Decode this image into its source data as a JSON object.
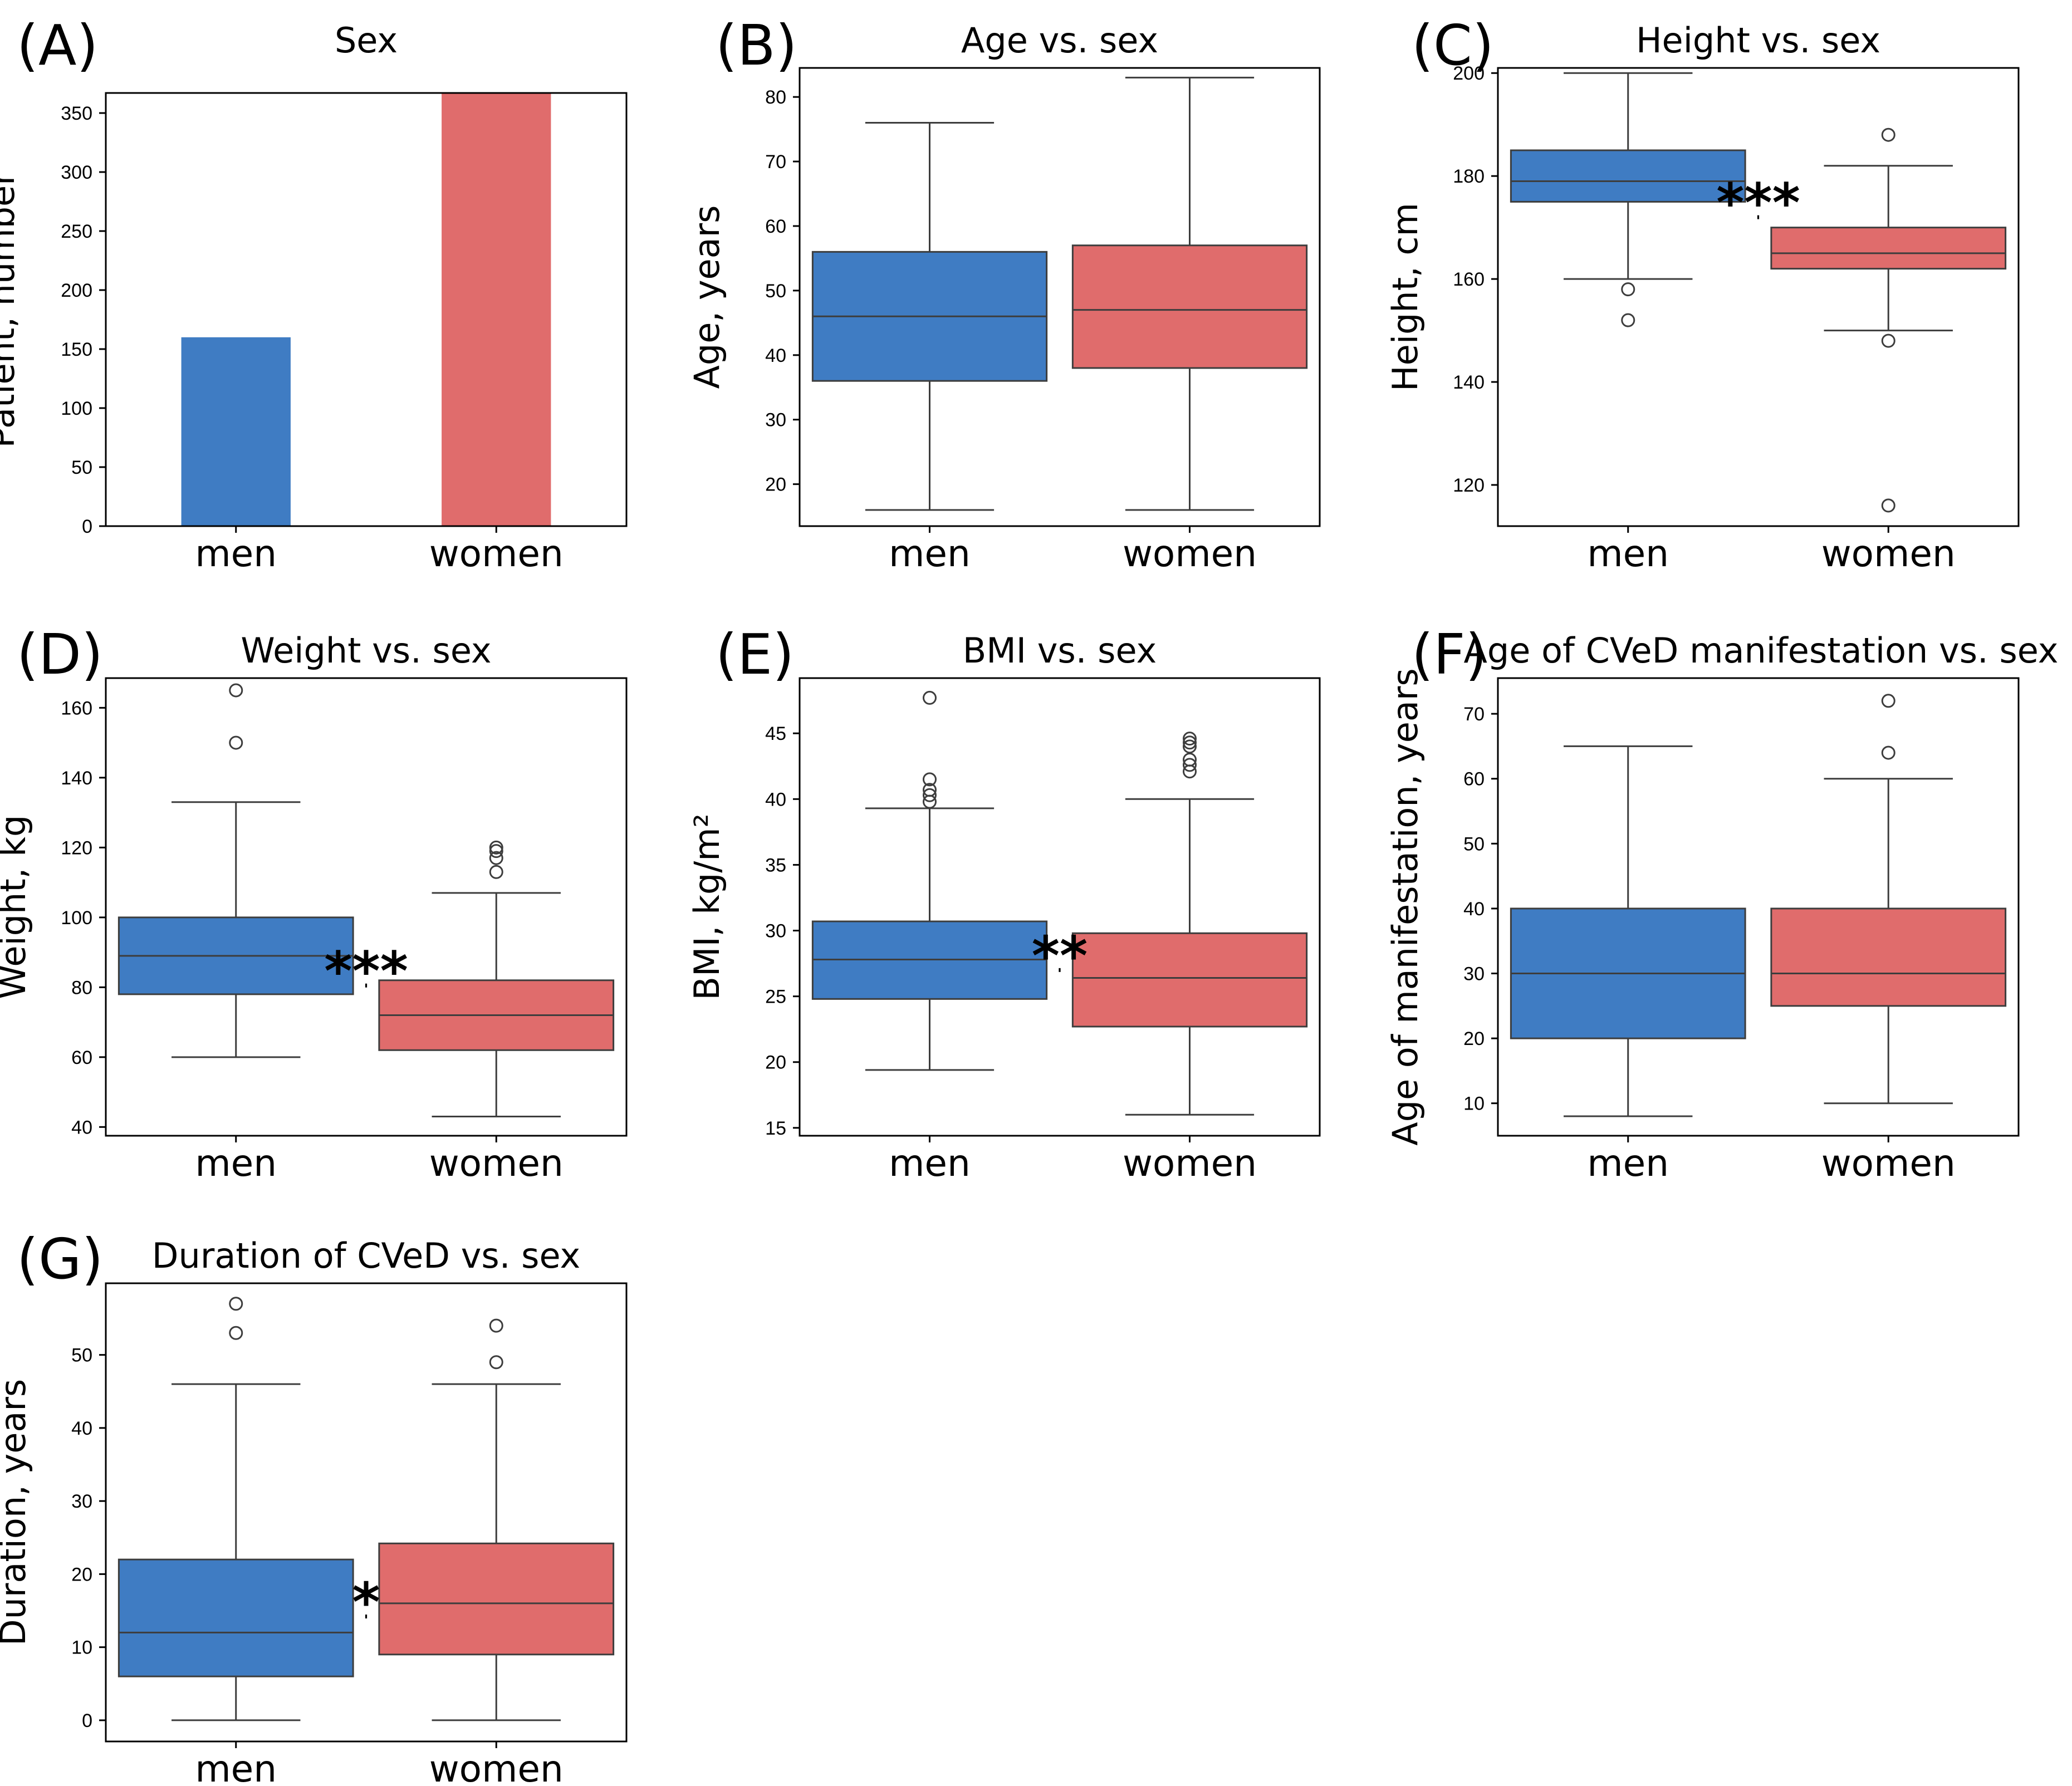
{
  "colors": {
    "men": "#3f7cc3",
    "women": "#e06c6c",
    "line": "#3d3d3d",
    "axis": "#000000"
  },
  "chart_data": [
    {
      "id": "A",
      "panel_label": "(A)",
      "type": "bar",
      "title": "Sex",
      "ylabel": "Patient, number",
      "categories": [
        "men",
        "women"
      ],
      "values": [
        160,
        367
      ],
      "ylim": [
        0,
        367
      ],
      "yticks": [
        0,
        50,
        100,
        150,
        200,
        250,
        300,
        350
      ]
    },
    {
      "id": "B",
      "panel_label": "(B)",
      "type": "box",
      "title": "Age vs. sex",
      "ylabel": "Age, years",
      "categories": [
        "men",
        "women"
      ],
      "ylim": [
        13.5,
        84.5
      ],
      "yticks": [
        20,
        30,
        40,
        50,
        60,
        70,
        80
      ],
      "series": [
        {
          "name": "men",
          "min": 16,
          "q1": 36,
          "median": 46,
          "q3": 56,
          "max": 76,
          "outliers": []
        },
        {
          "name": "women",
          "min": 16,
          "q1": 38,
          "median": 47,
          "q3": 57,
          "max": 83,
          "outliers": []
        }
      ],
      "significance": null
    },
    {
      "id": "C",
      "panel_label": "(C)",
      "type": "box",
      "title": "Height vs. sex",
      "ylabel": "Height, cm",
      "categories": [
        "men",
        "women"
      ],
      "ylim": [
        112,
        201
      ],
      "yticks": [
        120,
        140,
        160,
        180,
        200
      ],
      "series": [
        {
          "name": "men",
          "min": 160,
          "q1": 175,
          "median": 179,
          "q3": 185,
          "max": 200,
          "outliers": [
            158,
            152
          ]
        },
        {
          "name": "women",
          "min": 150,
          "q1": 162,
          "median": 165,
          "q3": 170,
          "max": 182,
          "outliers": [
            188,
            148,
            116
          ]
        }
      ],
      "significance": {
        "label": "***",
        "y": 172
      }
    },
    {
      "id": "D",
      "panel_label": "(D)",
      "type": "box",
      "title": "Weight vs. sex",
      "ylabel": "Weight, kg",
      "categories": [
        "men",
        "women"
      ],
      "ylim": [
        37.5,
        168.5
      ],
      "yticks": [
        40,
        60,
        80,
        100,
        120,
        140,
        160
      ],
      "series": [
        {
          "name": "men",
          "min": 60,
          "q1": 78,
          "median": 89,
          "q3": 100,
          "max": 133,
          "outliers": [
            165,
            150
          ]
        },
        {
          "name": "women",
          "min": 43,
          "q1": 62,
          "median": 72,
          "q3": 82,
          "max": 107,
          "outliers": [
            120,
            119,
            117,
            113
          ]
        }
      ],
      "significance": {
        "label": "***",
        "y": 80.5
      }
    },
    {
      "id": "E",
      "panel_label": "(E)",
      "type": "box",
      "title": "BMI vs. sex",
      "ylabel": "BMI, kg/m²",
      "categories": [
        "men",
        "women"
      ],
      "ylim": [
        14.4,
        49.2
      ],
      "yticks": [
        15,
        20,
        25,
        30,
        35,
        40,
        45
      ],
      "series": [
        {
          "name": "men",
          "min": 19.4,
          "q1": 24.8,
          "median": 27.8,
          "q3": 30.7,
          "max": 39.3,
          "outliers": [
            47.7,
            41.5,
            40.7,
            40.3,
            39.8
          ]
        },
        {
          "name": "women",
          "min": 16.0,
          "q1": 22.7,
          "median": 26.4,
          "q3": 29.8,
          "max": 40.0,
          "outliers": [
            44.6,
            44.3,
            44.0,
            43.0,
            42.6,
            42.1
          ]
        }
      ],
      "significance": {
        "label": "**",
        "y": 27.0
      }
    },
    {
      "id": "F",
      "panel_label": "(F)",
      "type": "box",
      "title": "Age of CVeD manifestation vs. sex",
      "ylabel": "Age of manifestation, years",
      "categories": [
        "men",
        "women"
      ],
      "ylim": [
        5,
        75.5
      ],
      "yticks": [
        10,
        20,
        30,
        40,
        50,
        60,
        70
      ],
      "series": [
        {
          "name": "men",
          "min": 8,
          "q1": 20,
          "median": 30,
          "q3": 40,
          "max": 65,
          "outliers": []
        },
        {
          "name": "women",
          "min": 10,
          "q1": 25,
          "median": 30,
          "q3": 40,
          "max": 60,
          "outliers": [
            72,
            64
          ]
        }
      ],
      "significance": null
    },
    {
      "id": "G",
      "panel_label": "(G)",
      "type": "box",
      "title": "Duration of CVeD vs. sex",
      "ylabel": "Duration, years",
      "categories": [
        "men",
        "women"
      ],
      "ylim": [
        -2.9,
        59.8
      ],
      "yticks": [
        0,
        10,
        20,
        30,
        40,
        50
      ],
      "series": [
        {
          "name": "men",
          "min": 0,
          "q1": 6,
          "median": 12,
          "q3": 22,
          "max": 46,
          "outliers": [
            57,
            53
          ]
        },
        {
          "name": "women",
          "min": 0,
          "q1": 9,
          "median": 16,
          "q3": 24.2,
          "max": 46,
          "outliers": [
            54,
            49
          ]
        }
      ],
      "significance": {
        "label": "*",
        "y": 14.2
      }
    }
  ]
}
